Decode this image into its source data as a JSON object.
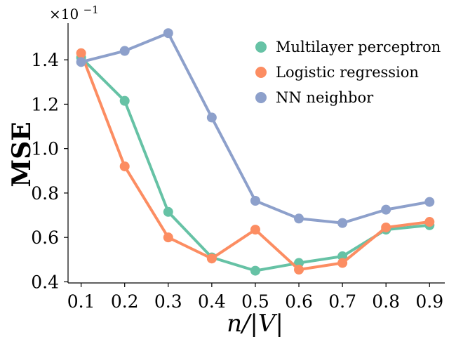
{
  "chart_data": {
    "type": "line",
    "title": "",
    "xlabel": "n/|V|",
    "ylabel": "MSE",
    "y_offset_label": "×10",
    "y_offset_exponent": "−1",
    "x": [
      0.1,
      0.2,
      0.3,
      0.4,
      0.5,
      0.6,
      0.7,
      0.8,
      0.9
    ],
    "x_tick_labels": [
      "0.1",
      "0.2",
      "0.3",
      "0.4",
      "0.5",
      "0.6",
      "0.7",
      "0.8",
      "0.9"
    ],
    "y_ticks": [
      0.4,
      0.6,
      0.8,
      1.0,
      1.2,
      1.4
    ],
    "y_tick_labels": [
      "0.4",
      "0.6",
      "0.8",
      "1.0",
      "1.2",
      "1.4"
    ],
    "xlim": [
      0.07,
      0.935
    ],
    "ylim": [
      0.395,
      1.565
    ],
    "grid": false,
    "legend_position": "top-right",
    "series": [
      {
        "name": "Multilayer perceptron",
        "color": "#66c2a5",
        "values": [
          1.41,
          1.215,
          0.715,
          0.51,
          0.45,
          0.485,
          0.515,
          0.635,
          0.655
        ]
      },
      {
        "name": "Logistic regression",
        "color": "#fc8d62",
        "values": [
          1.43,
          0.92,
          0.6,
          0.505,
          0.635,
          0.455,
          0.485,
          0.645,
          0.67
        ]
      },
      {
        "name": "NN neighbor",
        "color": "#8da0cb",
        "values": [
          1.39,
          1.44,
          1.52,
          1.14,
          0.765,
          0.685,
          0.665,
          0.725,
          0.76
        ]
      }
    ]
  }
}
